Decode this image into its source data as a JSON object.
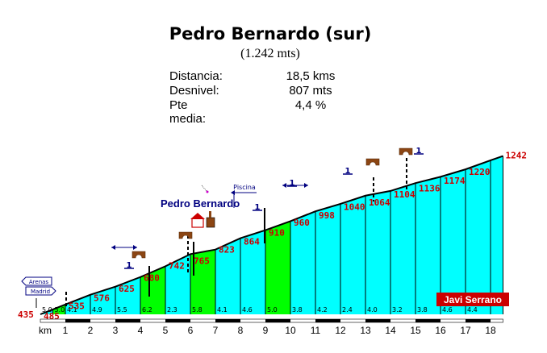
{
  "header": {
    "title": "Pedro Bernardo (sur)",
    "subtitle": "(1.242 mts)",
    "stats": [
      {
        "label": "Distancia:",
        "value": "18,5 kms"
      },
      {
        "label": "Desnivel:",
        "value": "807 mts"
      },
      {
        "label": "Pte media:",
        "value": "4,4 %"
      }
    ]
  },
  "chart_data": {
    "type": "area",
    "title": "Pedro Bernardo (sur)",
    "x_unit": "km",
    "x_ticks": [
      "km",
      "1",
      "2",
      "3",
      "4",
      "5",
      "6",
      "7",
      "8",
      "9",
      "10",
      "11",
      "12",
      "13",
      "14",
      "15",
      "16",
      "17",
      "18"
    ],
    "start_elevation": "435",
    "segments": [
      {
        "km_end": 0.5,
        "elevation": "460",
        "show_label": false,
        "slope": "5.0",
        "color": "#00ffff"
      },
      {
        "km_end": 1,
        "elevation": "485",
        "show_label": true,
        "slope": "5.0",
        "color": "#00ff00"
      },
      {
        "km_end": 2,
        "elevation": "535",
        "show_label": true,
        "slope": "4.1",
        "color": "#00ffff"
      },
      {
        "km_end": 3,
        "elevation": "576",
        "show_label": true,
        "slope": "4.9",
        "color": "#00ffff"
      },
      {
        "km_end": 4,
        "elevation": "625",
        "show_label": true,
        "slope": "5.5",
        "color": "#00ffff"
      },
      {
        "km_end": 5,
        "elevation": "680",
        "show_label": true,
        "slope": "6.2",
        "color": "#00ff00"
      },
      {
        "km_end": 6,
        "elevation": "742",
        "show_label": true,
        "slope": "2.3",
        "color": "#00ffff"
      },
      {
        "km_end": 7,
        "elevation": "765",
        "show_label": true,
        "slope": "5.8",
        "color": "#00ff00"
      },
      {
        "km_end": 8,
        "elevation": "823",
        "show_label": true,
        "slope": "4.1",
        "color": "#00ffff"
      },
      {
        "km_end": 9,
        "elevation": "864",
        "show_label": true,
        "slope": "4.6",
        "color": "#00ffff"
      },
      {
        "km_end": 10,
        "elevation": "910",
        "show_label": true,
        "slope": "5.0",
        "color": "#00ff00"
      },
      {
        "km_end": 11,
        "elevation": "960",
        "show_label": true,
        "slope": "3.8",
        "color": "#00ffff"
      },
      {
        "km_end": 12,
        "elevation": "998",
        "show_label": true,
        "slope": "4.2",
        "color": "#00ffff"
      },
      {
        "km_end": 13,
        "elevation": "1040",
        "show_label": true,
        "slope": "2.4",
        "color": "#00ffff"
      },
      {
        "km_end": 14,
        "elevation": "1064",
        "show_label": true,
        "slope": "4.0",
        "color": "#00ffff"
      },
      {
        "km_end": 15,
        "elevation": "1104",
        "show_label": true,
        "slope": "3.2",
        "color": "#00ffff"
      },
      {
        "km_end": 16,
        "elevation": "1136",
        "show_label": true,
        "slope": "3.8",
        "color": "#00ffff"
      },
      {
        "km_end": 17,
        "elevation": "1174",
        "show_label": true,
        "slope": "4.6",
        "color": "#00ffff"
      },
      {
        "km_end": 18,
        "elevation": "1220",
        "show_label": true,
        "slope": "4.4",
        "color": "#00ffff"
      },
      {
        "km_end": 18.5,
        "elevation": "1242",
        "show_label": true,
        "slope": "",
        "color": "#00ffff"
      }
    ],
    "annotations": {
      "village": "Pedro Bernardo",
      "pool": "Piscina",
      "road_sign": [
        "Arenas",
        "Madrid"
      ],
      "author": "Javi Serrano",
      "route_marker": "1"
    },
    "colors": {
      "easy": "#00ffff",
      "hard": "#00ff00",
      "elevation_label": "#cc0000",
      "marker": "#000080",
      "author_bg": "#cc0000"
    }
  }
}
